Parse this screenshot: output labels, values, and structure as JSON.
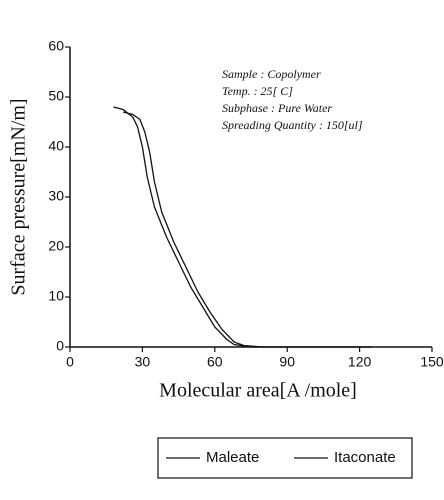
{
  "chart_data": {
    "type": "line",
    "xlabel": "Molecular area[A /mole]",
    "ylabel": "Surface pressure[mN/m]",
    "annotations": [
      "Sample : Copolymer",
      "Temp. : 25[ C]",
      "Subphase : Pure Water",
      "Spreading Quantity : 150[ul]"
    ],
    "xlim": [
      0,
      150
    ],
    "xticks": [
      0,
      30,
      60,
      90,
      120,
      150
    ],
    "ylim": [
      0,
      60
    ],
    "yticks": [
      0,
      10,
      20,
      30,
      40,
      50,
      60
    ],
    "series": [
      {
        "name": "Maleate",
        "color": "#111111",
        "x": [
          18,
          22,
          26,
          28,
          30,
          32,
          35,
          40,
          45,
          50,
          55,
          60,
          65,
          68,
          75,
          90,
          110,
          125
        ],
        "values": [
          48,
          47.5,
          46,
          44,
          40,
          34,
          28,
          22,
          17,
          12,
          8,
          4,
          1.5,
          0.5,
          0,
          0,
          0,
          0
        ]
      },
      {
        "name": "Itaconate",
        "color": "#111111",
        "x": [
          22,
          26,
          29,
          31,
          33,
          35,
          38,
          43,
          48,
          53,
          58,
          63,
          68,
          72,
          80,
          95,
          115,
          125
        ],
        "values": [
          47,
          46.5,
          45.5,
          43,
          39,
          33,
          27,
          21,
          16,
          11,
          7,
          3.5,
          1,
          0.3,
          0,
          0,
          0,
          0
        ]
      }
    ]
  }
}
